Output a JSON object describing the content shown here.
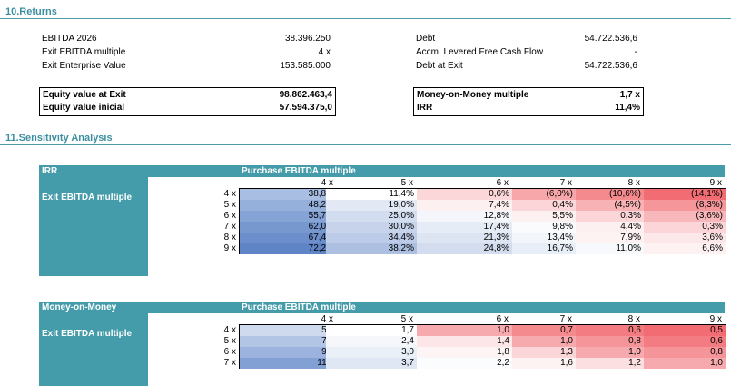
{
  "returns": {
    "title": "10.Returns",
    "left": [
      {
        "label": "EBITDA 2026",
        "value": "38.396.250"
      },
      {
        "label": "Exit EBITDA multiple",
        "value": "4 x"
      },
      {
        "label": "Exit Enterprise Value",
        "value": "153.585.000"
      }
    ],
    "right": [
      {
        "label": "Debt",
        "value": "54.722.536,6"
      },
      {
        "label": "Accm. Levered Free Cash Flow",
        "value": "-"
      },
      {
        "label": "Debt at Exit",
        "value": "54.722.536,6"
      }
    ],
    "equity_box": [
      {
        "label": "Equity value at Exit",
        "value": "98.862.463,4"
      },
      {
        "label": "Equity value inicial",
        "value": "57.594.375,0"
      }
    ],
    "mom_box": [
      {
        "label": "Money-on-Money multiple",
        "value": "1,7 x"
      },
      {
        "label": "IRR",
        "value": "11,4%"
      }
    ]
  },
  "sensitivity": {
    "title": "11.Sensitivity Analysis",
    "irr": {
      "panel_label": "IRR",
      "header": "Purchase EBITDA multiple",
      "row_title": "Exit EBITDA multiple",
      "columns": [
        "4 x",
        "5 x",
        "6 x",
        "7 x",
        "8 x",
        "9 x"
      ],
      "rows": [
        {
          "label": "4 x",
          "values": [
            "38,8%",
            "11,4%",
            "0,6%",
            "(6,0%)",
            "(10,6%)",
            "(14,1%)"
          ],
          "colors": [
            "#a9bee3",
            "#ffffff",
            "#fbd7d9",
            "#f7a7aa",
            "#f48a8e",
            "#f26d73"
          ]
        },
        {
          "label": "5 x",
          "values": [
            "48,2%",
            "19,0%",
            "7,4%",
            "0,4%",
            "(4,5%)",
            "(8,3%)"
          ],
          "colors": [
            "#96b0dc",
            "#e2e9f5",
            "#fdf0f0",
            "#fbd5d7",
            "#f7b2b5",
            "#f5979a"
          ]
        },
        {
          "label": "6 x",
          "values": [
            "55,7%",
            "25,0%",
            "12,8%",
            "5,5%",
            "0,3%",
            "(3,6%)"
          ],
          "colors": [
            "#86a3d5",
            "#d2ddef",
            "#f4f6fb",
            "#fcf0f0",
            "#fbd5d7",
            "#f8b8bb"
          ]
        },
        {
          "label": "7 x",
          "values": [
            "62,0%",
            "30,0%",
            "17,4%",
            "9,8%",
            "4,4%",
            "0,3%"
          ],
          "colors": [
            "#7797cf",
            "#c6d3eb",
            "#e6ecf6",
            "#fafbfd",
            "#fcf0f0",
            "#fbd5d7"
          ]
        },
        {
          "label": "8 x",
          "values": [
            "67,4%",
            "34,4%",
            "21,3%",
            "13,4%",
            "7,9%",
            "3,6%"
          ],
          "colors": [
            "#6c8fcb",
            "#bccbe7",
            "#dde5f2",
            "#f2f5fa",
            "#fdf3f3",
            "#fce8e9"
          ]
        },
        {
          "label": "9 x",
          "values": [
            "72,2%",
            "38,2%",
            "24,8%",
            "16,7%",
            "11,0%",
            "6,6%"
          ],
          "colors": [
            "#5f85c6",
            "#adc0e2",
            "#d3ddef",
            "#e8eef7",
            "#f7f9fc",
            "#fdf1f1"
          ]
        }
      ]
    },
    "mom": {
      "panel_label": "Money-on-Money",
      "header": "Purchase EBITDA multiple",
      "row_title": "Exit EBITDA multiple",
      "columns": [
        "4 x",
        "5 x",
        "6 x",
        "7 x",
        "8 x",
        "9 x"
      ],
      "rows": [
        {
          "label": "4 x",
          "values": [
            "5,1",
            "1,7",
            "1,0",
            "0,7",
            "0,6",
            "0,5"
          ],
          "colors": [
            "#cfdaee",
            "#ffffff",
            "#f7aaad",
            "#f48a8e",
            "#f27c81",
            "#f26d73"
          ]
        },
        {
          "label": "5 x",
          "values": [
            "7,1",
            "2,4",
            "1,4",
            "1,0",
            "0,8",
            "0,6"
          ],
          "colors": [
            "#b3c5e4",
            "#f5f7fb",
            "#fce6e7",
            "#f7aaad",
            "#f69599",
            "#f27c81"
          ]
        },
        {
          "label": "6 x",
          "values": [
            "9,1",
            "3,0",
            "1,8",
            "1,3",
            "1,0",
            "0,8"
          ],
          "colors": [
            "#9bb3de",
            "#eaf0f8",
            "#fdf5f5",
            "#fbd6d8",
            "#f7aaad",
            "#f69599"
          ]
        },
        {
          "label": "7 x",
          "values": [
            "11,1",
            "3,7",
            "2,2",
            "1,6",
            "1,2",
            "1,0"
          ],
          "colors": [
            "#82a0d4",
            "#dfe7f4",
            "#fbfcfe",
            "#fdf3f3",
            "#fcdfe0",
            "#f7aaad"
          ]
        }
      ]
    }
  }
}
